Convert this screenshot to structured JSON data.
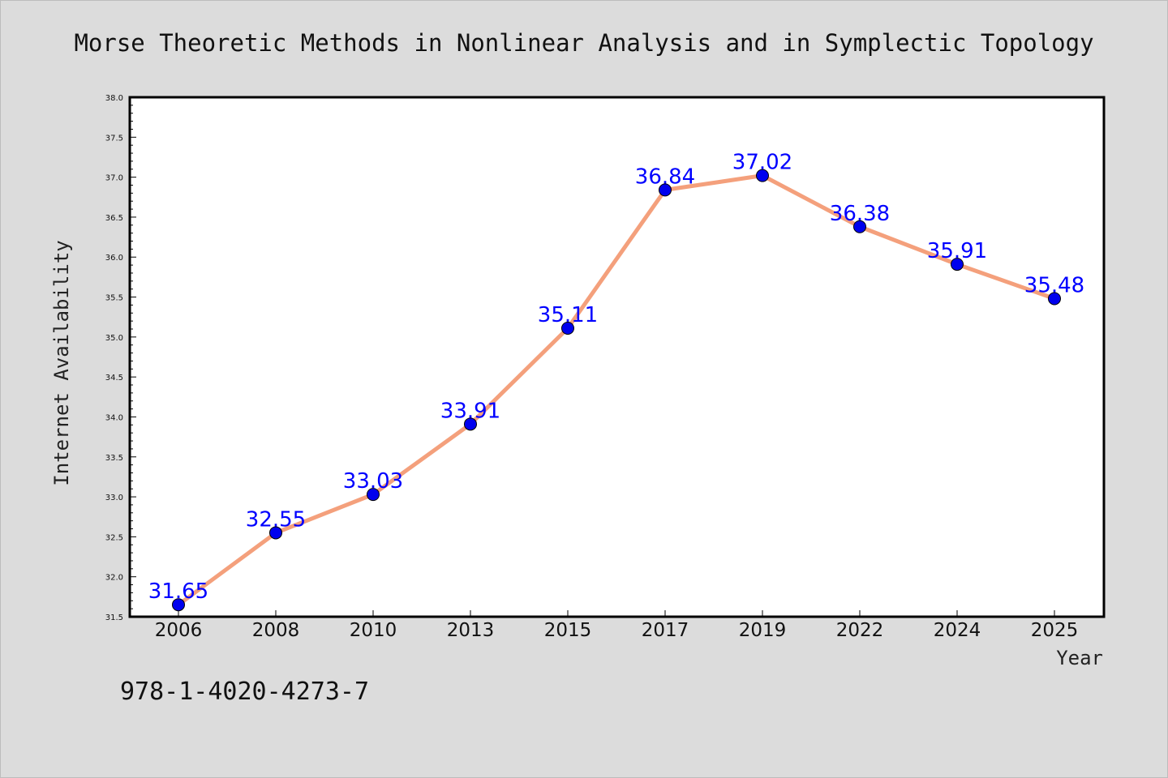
{
  "chart_data": {
    "type": "line",
    "title": "Morse Theoretic Methods in Nonlinear Analysis and in Symplectic Topology",
    "xlabel": "Year",
    "ylabel": "Internet Availability",
    "categories": [
      "2006",
      "2008",
      "2010",
      "2013",
      "2015",
      "2017",
      "2019",
      "2022",
      "2024",
      "2025"
    ],
    "values": [
      31.65,
      32.55,
      33.03,
      33.91,
      35.11,
      36.84,
      37.02,
      36.38,
      35.91,
      35.48
    ],
    "data_labels": [
      "31.65",
      "32.55",
      "33.03",
      "33.91",
      "35.11",
      "36.84",
      "37.02",
      "36.38",
      "35.91",
      "35.48"
    ],
    "ylim": [
      31.5,
      38.0
    ],
    "yticks": [
      "31.5",
      "32.0",
      "32.5",
      "33.0",
      "33.5",
      "34.0",
      "34.5",
      "35.0",
      "35.5",
      "36.0",
      "36.5",
      "37.0",
      "37.5",
      "38.0"
    ],
    "grid": false,
    "legend": "none",
    "line_color": "#f4a07c",
    "marker_color": "#0000ee",
    "label_color": "#0000ff"
  },
  "footer": {
    "isbn": "978-1-4020-4273-7"
  }
}
